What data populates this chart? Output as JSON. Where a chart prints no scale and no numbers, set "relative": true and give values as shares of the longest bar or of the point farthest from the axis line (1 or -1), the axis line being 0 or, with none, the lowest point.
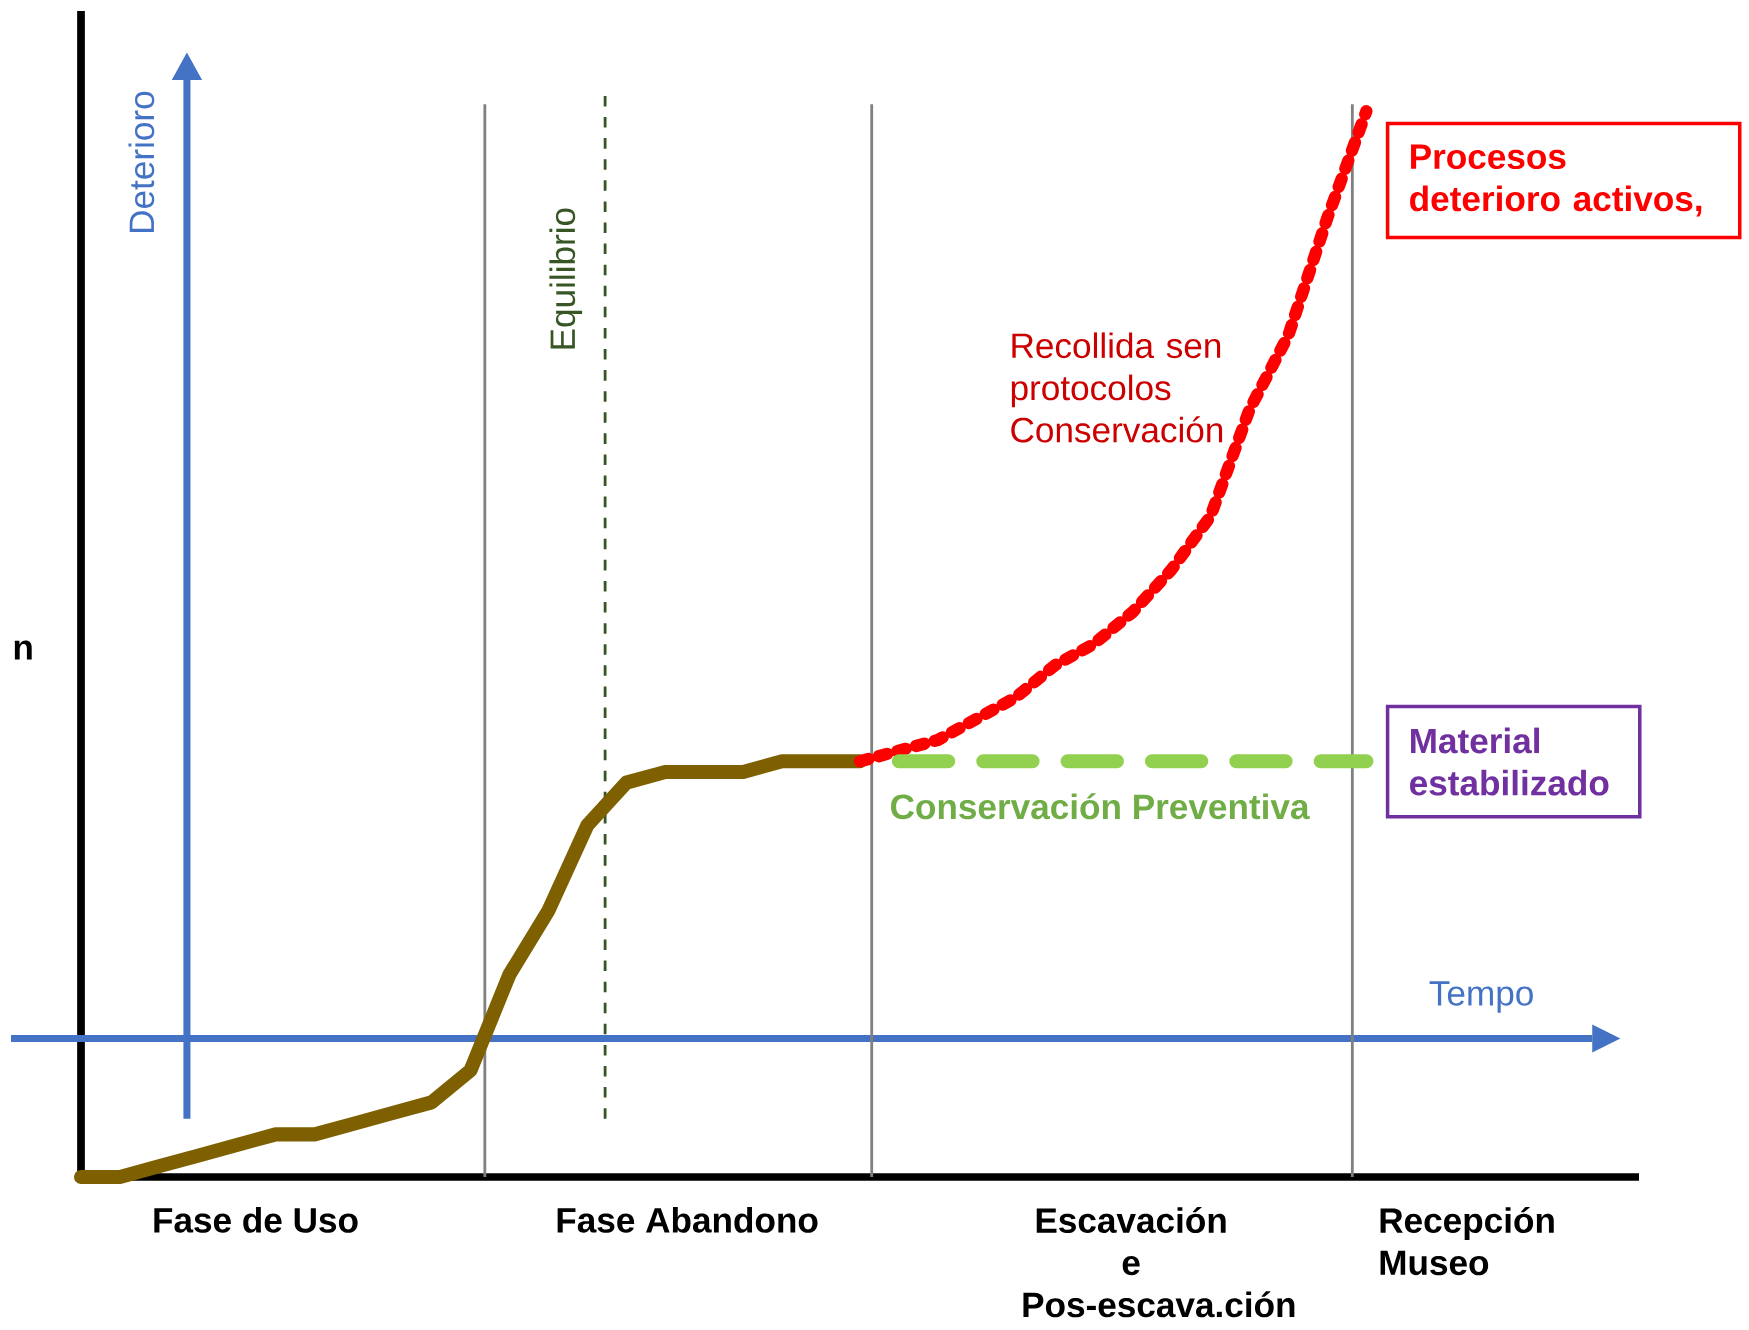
{
  "chart_data": {
    "type": "line",
    "relative": true,
    "ylabel": "Deterioro",
    "categories": [
      null,
      null,
      null,
      null,
      null,
      null,
      null,
      null,
      null,
      null,
      null,
      null,
      null,
      null,
      null,
      null,
      null,
      null,
      null,
      null,
      null,
      null,
      null,
      null,
      null,
      null,
      null,
      null,
      null,
      null,
      null,
      null,
      null,
      null,
      null,
      null,
      null,
      null,
      null,
      null,
      null
    ],
    "series": [
      {
        "color": "#7f6000",
        "line_style": "solid",
        "values": [
          0,
          0,
          0.01,
          0.02,
          0.03,
          0.04,
          0.04,
          0.05,
          0.06,
          0.07,
          0.1,
          0.19,
          0.25,
          0.33,
          0.37,
          0.38,
          0.38,
          0.38,
          0.39,
          0.39,
          0.39,
          null,
          null,
          null,
          null,
          null,
          null,
          null,
          null,
          null,
          null,
          null,
          null,
          null,
          null,
          null,
          null,
          null,
          null,
          null,
          null
        ]
      },
      {
        "color": "#ff0000",
        "line_style": "dotted",
        "values": [
          null,
          null,
          null,
          null,
          null,
          null,
          null,
          null,
          null,
          null,
          null,
          null,
          null,
          null,
          null,
          null,
          null,
          null,
          null,
          null,
          0.39,
          0.4,
          0.41,
          0.43,
          0.45,
          0.48,
          0.5,
          0.53,
          0.57,
          0.62,
          0.72,
          0.79,
          0.9,
          1,
          null,
          null,
          null,
          null,
          null,
          null,
          null
        ]
      },
      {
        "color": "#92d050",
        "line_style": "dashed",
        "values": [
          null,
          null,
          null,
          null,
          null,
          null,
          null,
          null,
          null,
          null,
          null,
          null,
          null,
          null,
          null,
          null,
          null,
          null,
          null,
          null,
          null,
          0.39,
          0.39,
          0.39,
          0.39,
          0.39,
          0.39,
          0.39,
          0.39,
          0.39,
          0.39,
          0.39,
          0.39,
          0.39,
          null,
          null,
          null,
          null,
          null,
          null,
          null
        ]
      }
    ],
    "ref_lines": [
      {
        "axis": "y",
        "value": 0.13,
        "label": "Tempo",
        "color": "#4472c4"
      }
    ],
    "annotations": [
      "Equilibrio",
      "Recollida sen protocolos Conservación",
      "Conservación Preventiva",
      "Procesos deterioro activos,",
      "Material estabilizado",
      "n",
      "Fase de Uso",
      "Fase Abandono",
      "Escavación e Pos-escava.ción",
      "Recepción Museo"
    ]
  }
}
